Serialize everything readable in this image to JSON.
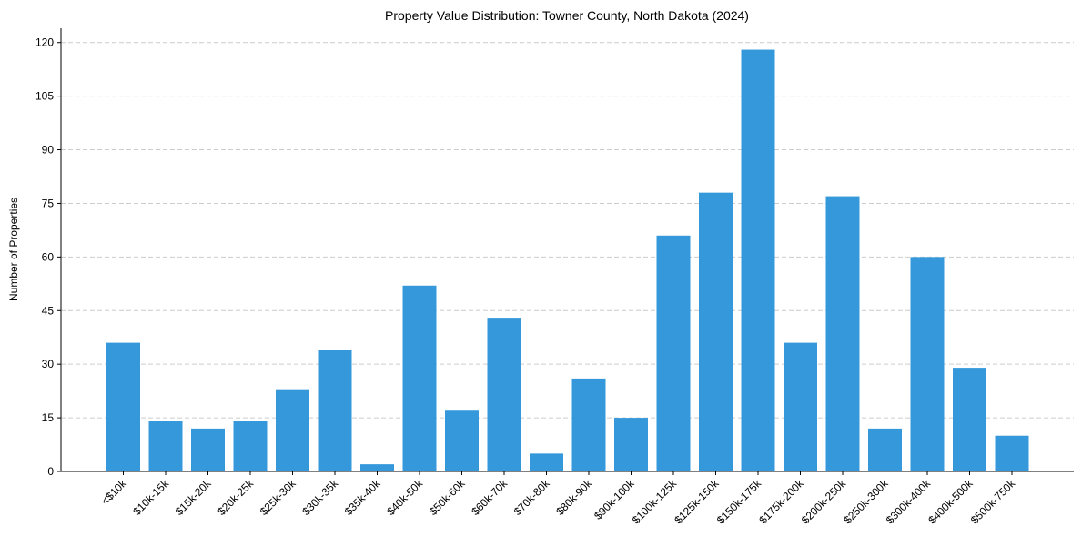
{
  "chart_data": {
    "type": "bar",
    "title": "Property Value Distribution: Towner County, North Dakota (2024)",
    "xlabel": "",
    "ylabel": "Number of Properties",
    "categories": [
      "<$10k",
      "$10k-15k",
      "$15k-20k",
      "$20k-25k",
      "$25k-30k",
      "$30k-35k",
      "$35k-40k",
      "$40k-50k",
      "$50k-60k",
      "$60k-70k",
      "$70k-80k",
      "$80k-90k",
      "$90k-100k",
      "$100k-125k",
      "$125k-150k",
      "$150k-175k",
      "$175k-200k",
      "$200k-250k",
      "$250k-300k",
      "$300k-400k",
      "$400k-500k",
      "$500k-750k"
    ],
    "values": [
      36,
      14,
      12,
      14,
      23,
      34,
      2,
      52,
      17,
      43,
      5,
      26,
      15,
      66,
      78,
      118,
      36,
      77,
      12,
      60,
      29,
      10
    ],
    "ylim": [
      0,
      124
    ],
    "yticks": [
      0,
      15,
      30,
      45,
      60,
      75,
      90,
      105,
      120
    ],
    "grid": "horizontal dashed",
    "colors": {
      "bar": "#3498db",
      "grid": "#cccccc",
      "axis": "#000000"
    }
  }
}
